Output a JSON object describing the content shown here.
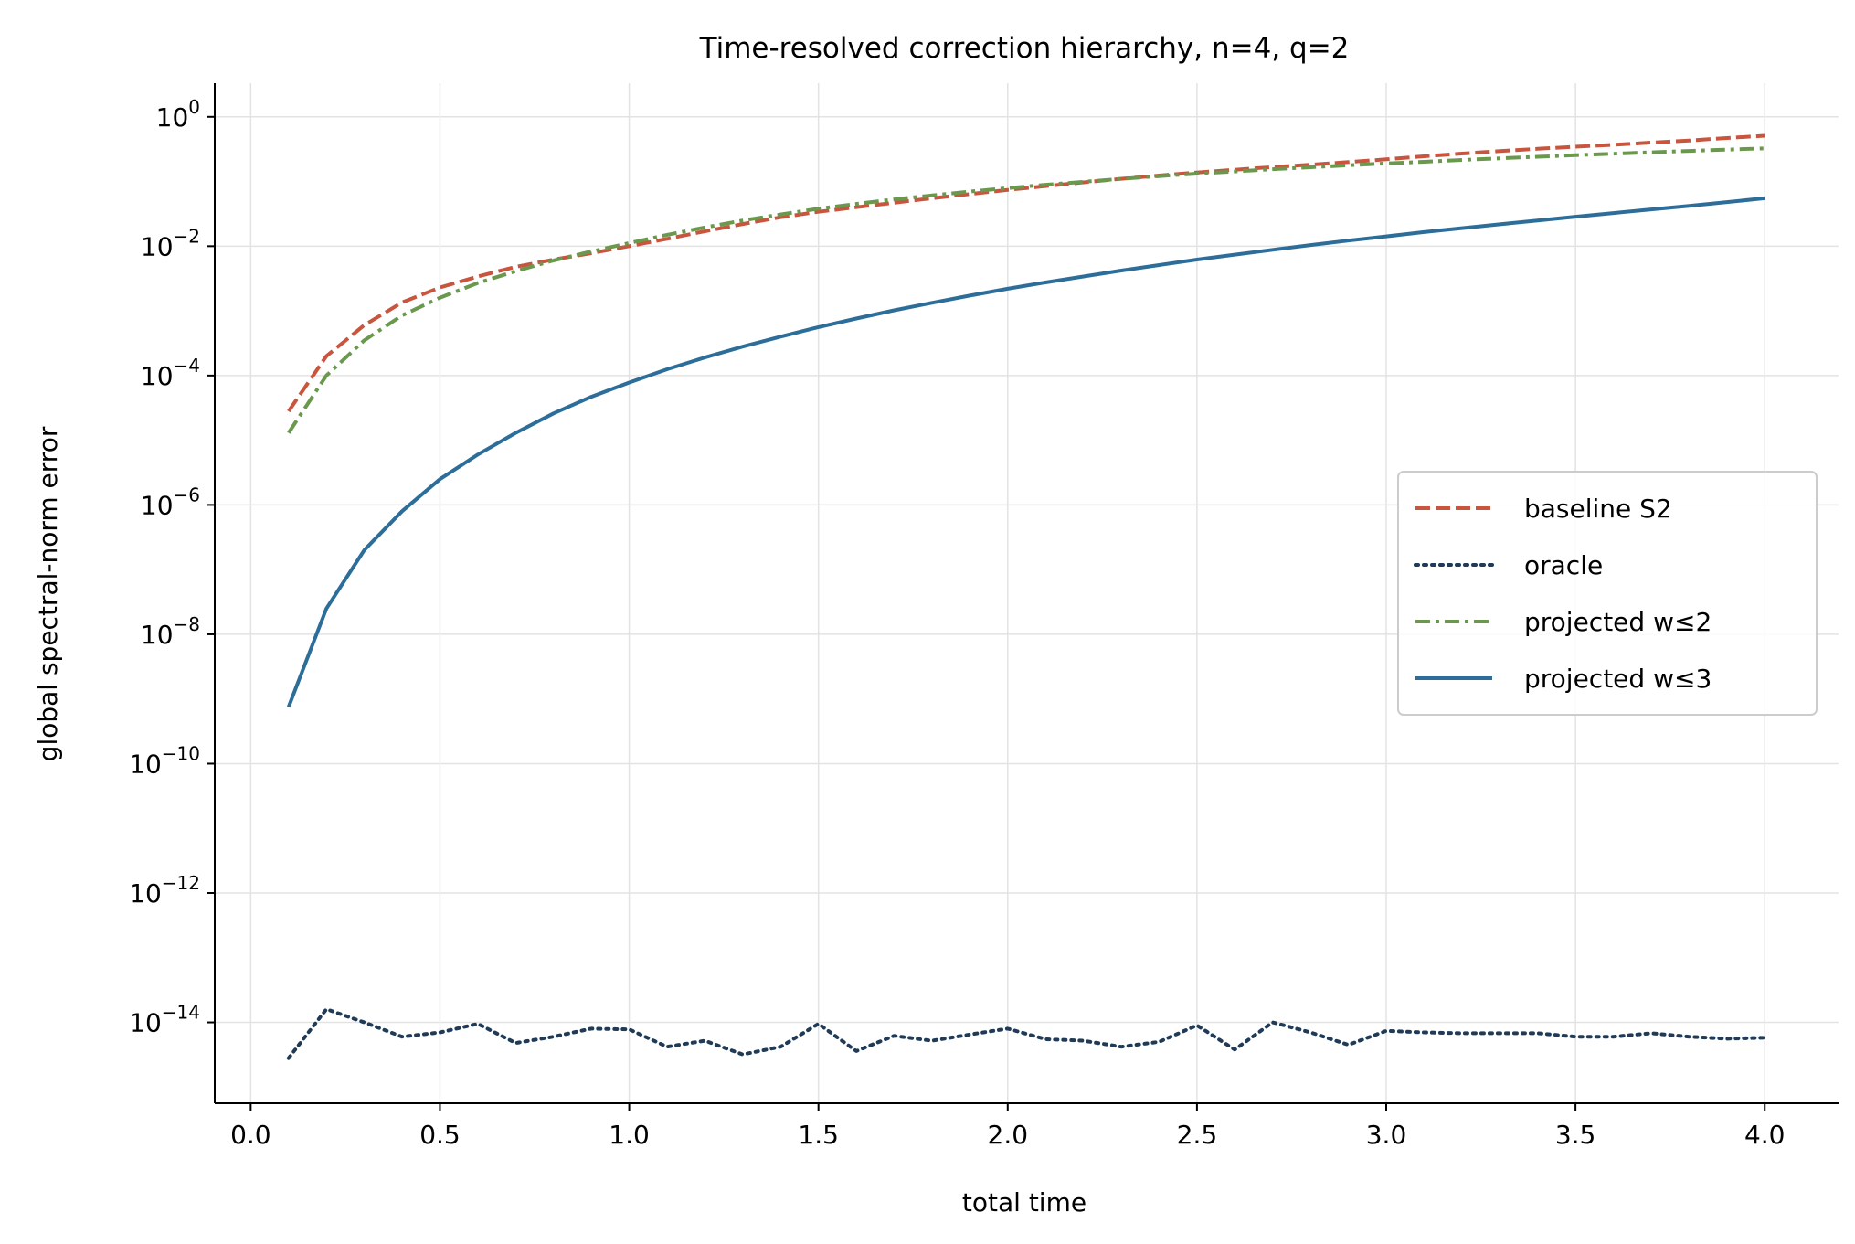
{
  "chart_data": {
    "type": "line",
    "title": "Time-resolved correction hierarchy, n=4, q=2",
    "xlabel": "total time",
    "ylabel": "global spectral-norm error",
    "xlim": [
      -0.095,
      4.195
    ],
    "ylim_log10": [
      -15.25,
      0.52
    ],
    "y_scale": "log",
    "grid": true,
    "legend_position": "center-right",
    "x_ticks": [
      0.0,
      0.5,
      1.0,
      1.5,
      2.0,
      2.5,
      3.0,
      3.5,
      4.0
    ],
    "x_tick_labels": [
      "0.0",
      "0.5",
      "1.0",
      "1.5",
      "2.0",
      "2.5",
      "3.0",
      "3.5",
      "4.0"
    ],
    "y_ticks_exp": [
      0,
      -2,
      -4,
      -6,
      -8,
      -10,
      -12,
      -14
    ],
    "y_tick_base": "10",
    "y_tick_exp_labels": [
      "0",
      "−2",
      "−4",
      "−6",
      "−8",
      "−10",
      "−12",
      "−14"
    ],
    "x": [
      0.1,
      0.2,
      0.3,
      0.4,
      0.5,
      0.6,
      0.7,
      0.8,
      0.9,
      1.0,
      1.1,
      1.2,
      1.3,
      1.4,
      1.5,
      1.6,
      1.7,
      1.8,
      1.9,
      2.0,
      2.1,
      2.2,
      2.3,
      2.4,
      2.5,
      2.6,
      2.7,
      2.8,
      2.9,
      3.0,
      3.1,
      3.2,
      3.3,
      3.4,
      3.5,
      3.6,
      3.7,
      3.8,
      3.9,
      4.0
    ],
    "series": [
      {
        "name": "baseline S2",
        "color": "#c8553d",
        "dash": "dashed",
        "values": [
          2.8e-05,
          0.0002,
          0.0006,
          0.00135,
          0.0023,
          0.0034,
          0.0048,
          0.0062,
          0.0078,
          0.01,
          0.013,
          0.017,
          0.022,
          0.028,
          0.034,
          0.04,
          0.047,
          0.055,
          0.064,
          0.074,
          0.085,
          0.097,
          0.11,
          0.124,
          0.138,
          0.152,
          0.167,
          0.182,
          0.2,
          0.22,
          0.245,
          0.27,
          0.295,
          0.32,
          0.345,
          0.37,
          0.4,
          0.43,
          0.47,
          0.51
        ]
      },
      {
        "name": "oracle",
        "color": "#1f3b57",
        "dash": "dotted",
        "values": [
          2.8e-15,
          1.6e-14,
          1e-14,
          6e-15,
          7e-15,
          9.5e-15,
          4.8e-15,
          6e-15,
          8e-15,
          7.8e-15,
          4.2e-15,
          5.2e-15,
          3.2e-15,
          4.2e-15,
          9.5e-15,
          3.6e-15,
          6.2e-15,
          5.2e-15,
          6.5e-15,
          8e-15,
          5.5e-15,
          5.2e-15,
          4.2e-15,
          5e-15,
          9e-15,
          3.8e-15,
          1e-14,
          7e-15,
          4.5e-15,
          7.4e-15,
          7e-15,
          6.8e-15,
          6.8e-15,
          6.8e-15,
          6e-15,
          6e-15,
          6.8e-15,
          6e-15,
          5.6e-15,
          5.8e-15
        ]
      },
      {
        "name": "projected w≤2",
        "color": "#6a994e",
        "dash": "dashdot",
        "values": [
          1.3e-05,
          0.0001,
          0.00035,
          0.00085,
          0.0016,
          0.0027,
          0.0041,
          0.006,
          0.0083,
          0.0112,
          0.015,
          0.0195,
          0.025,
          0.031,
          0.038,
          0.045,
          0.053,
          0.061,
          0.07,
          0.079,
          0.089,
          0.099,
          0.11,
          0.121,
          0.132,
          0.143,
          0.155,
          0.166,
          0.178,
          0.19,
          0.202,
          0.215,
          0.228,
          0.241,
          0.255,
          0.269,
          0.283,
          0.297,
          0.311,
          0.325
        ]
      },
      {
        "name": "projected w≤3",
        "color": "#2c6e99",
        "dash": "solid",
        "values": [
          7.5e-10,
          2.5e-08,
          2e-07,
          8e-07,
          2.5e-06,
          6e-06,
          1.3e-05,
          2.6e-05,
          4.7e-05,
          7.8e-05,
          0.000125,
          0.00019,
          0.00028,
          0.0004,
          0.00056,
          0.00076,
          0.00102,
          0.00133,
          0.00172,
          0.0022,
          0.00275,
          0.0034,
          0.0042,
          0.0051,
          0.0062,
          0.0074,
          0.0088,
          0.0104,
          0.0122,
          0.0142,
          0.0165,
          0.019,
          0.0218,
          0.025,
          0.0285,
          0.0325,
          0.037,
          0.042,
          0.048,
          0.055
        ]
      }
    ]
  }
}
